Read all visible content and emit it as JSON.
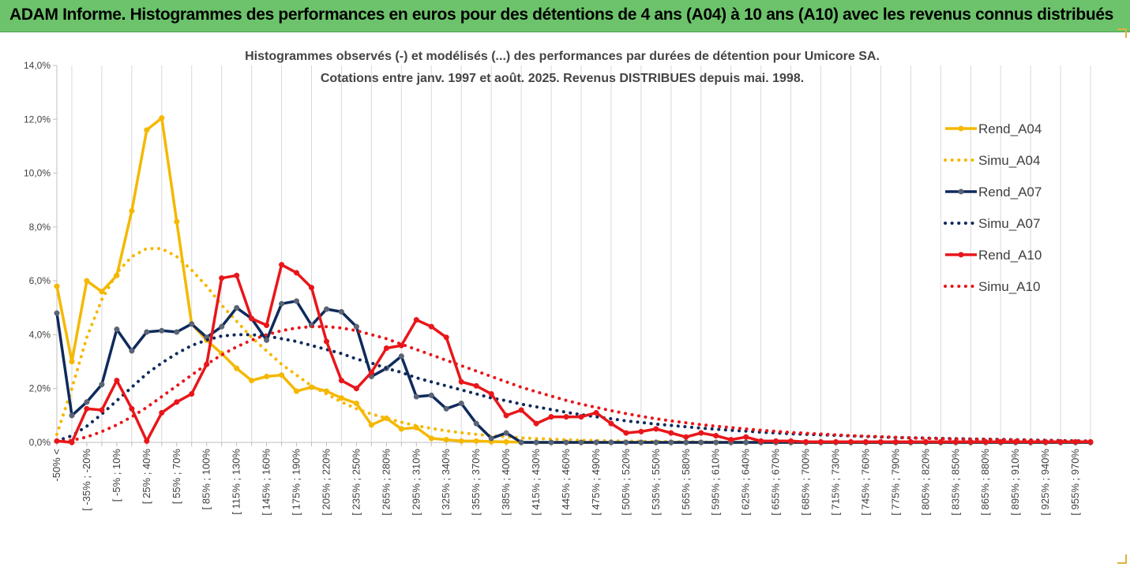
{
  "banner": {
    "title": "ADAM Informe. Histogrammes des performances en euros pour des détentions de 4 ans (A04) à 10 ans (A10) avec les revenus connus distribués"
  },
  "chart_data": {
    "type": "line",
    "title": "Histogrammes observés (-) et modélisés (...) des performances par durées de détention pour Umicore SA.",
    "subtitle": "Cotations entre janv. 1997 et août. 2025. Revenus DISTRIBUES depuis mai. 1998.",
    "xlabel": "",
    "ylabel": "",
    "ylim": [
      0,
      14
    ],
    "y_ticks": [
      "0,0%",
      "2,0%",
      "4,0%",
      "6,0%",
      "8,0%",
      "10,0%",
      "12,0%",
      "14,0%"
    ],
    "grid": "vertical",
    "legend_position": "right",
    "x_labels": [
      "-50% <",
      "[ -35% ; -20%",
      "[ -5% ; 10%",
      "[ 25% ; 40%",
      "[ 55% ; 70%",
      "[ 85% ; 100%",
      "[ 115% ; 130%",
      "[ 145% ; 160%",
      "[ 175% ; 190%",
      "[ 205% ; 220%",
      "[ 235% ; 250%",
      "[ 265% ; 280%",
      "[ 295% ; 310%",
      "[ 325% ; 340%",
      "[ 355% ; 370%",
      "[ 385% ; 400%",
      "[ 415% ; 430%",
      "[ 445% ; 460%",
      "[ 475% ; 490%",
      "[ 505% ; 520%",
      "[ 535% ; 550%",
      "[ 565% ; 580%",
      "[ 595% ; 610%",
      "[ 625% ; 640%",
      "[ 655% ; 670%",
      "[ 685% ; 700%",
      "[ 715% ; 730%",
      "[ 745% ; 760%",
      "[ 775% ; 790%",
      "[ 805% ; 820%",
      "[ 835% ; 850%",
      "[ 865% ; 880%",
      "[ 895% ; 910%",
      "[ 925% ; 940%",
      "[ 955% ; 970%"
    ],
    "series": [
      {
        "name": "Rend_A04",
        "style": "solid",
        "color": "#f5b800",
        "values": [
          5.8,
          3.0,
          6.0,
          5.6,
          6.2,
          8.6,
          11.6,
          12.05,
          8.2,
          4.4,
          3.8,
          3.3,
          2.75,
          2.3,
          2.45,
          2.5,
          1.9,
          2.05,
          1.9,
          1.65,
          1.45,
          0.65,
          0.9,
          0.5,
          0.55,
          0.15,
          0.1,
          0.05,
          0.05,
          0.03,
          0.02,
          0.01,
          0,
          0,
          0,
          0,
          0,
          0,
          0,
          0,
          0,
          0,
          0,
          0,
          0,
          0,
          0,
          0,
          0,
          0,
          0,
          0,
          0,
          0,
          0,
          0,
          0,
          0,
          0,
          0,
          0,
          0,
          0,
          0,
          0,
          0,
          0,
          0,
          0,
          0
        ]
      },
      {
        "name": "Simu_A04",
        "style": "dotted",
        "color": "#f5b800",
        "values": [
          0.3,
          2.0,
          3.9,
          5.3,
          6.3,
          6.9,
          7.2,
          7.2,
          6.9,
          6.4,
          5.8,
          5.1,
          4.5,
          3.9,
          3.4,
          2.9,
          2.5,
          2.1,
          1.8,
          1.5,
          1.25,
          1.05,
          0.9,
          0.75,
          0.62,
          0.52,
          0.43,
          0.36,
          0.3,
          0.25,
          0.21,
          0.17,
          0.14,
          0.12,
          0.1,
          0.08,
          0.07,
          0.06,
          0.05,
          0.04,
          0.03,
          0.03,
          0.02,
          0.02,
          0.01,
          0.01,
          0.01,
          0.01,
          0.01,
          0,
          0,
          0,
          0,
          0,
          0,
          0,
          0,
          0,
          0,
          0,
          0,
          0,
          0,
          0,
          0,
          0,
          0,
          0,
          0,
          0
        ]
      },
      {
        "name": "Rend_A07",
        "style": "solid",
        "color": "#0f2a5c",
        "values": [
          4.8,
          1.0,
          1.5,
          2.15,
          4.2,
          3.4,
          4.1,
          4.15,
          4.1,
          4.4,
          3.9,
          4.3,
          5.0,
          4.6,
          3.8,
          5.15,
          5.25,
          4.35,
          4.95,
          4.85,
          4.3,
          2.45,
          2.75,
          3.2,
          1.7,
          1.75,
          1.25,
          1.45,
          0.7,
          0.15,
          0.35,
          0,
          0,
          0,
          0,
          0,
          0,
          0,
          0,
          0,
          0,
          0,
          0,
          0,
          0,
          0,
          0,
          0,
          0,
          0,
          0,
          0,
          0,
          0,
          0,
          0,
          0,
          0,
          0,
          0,
          0,
          0,
          0,
          0,
          0,
          0,
          0,
          0,
          0,
          0
        ]
      },
      {
        "name": "Simu_A07",
        "style": "dotted",
        "color": "#0f2a5c",
        "values": [
          0.05,
          0.25,
          0.6,
          1.05,
          1.55,
          2.05,
          2.55,
          2.95,
          3.3,
          3.6,
          3.8,
          3.95,
          4.0,
          4.0,
          3.95,
          3.85,
          3.75,
          3.6,
          3.45,
          3.3,
          3.1,
          2.95,
          2.75,
          2.6,
          2.4,
          2.25,
          2.1,
          1.95,
          1.8,
          1.65,
          1.55,
          1.42,
          1.32,
          1.22,
          1.12,
          1.03,
          0.95,
          0.88,
          0.8,
          0.74,
          0.68,
          0.63,
          0.58,
          0.53,
          0.49,
          0.45,
          0.42,
          0.38,
          0.35,
          0.32,
          0.3,
          0.28,
          0.26,
          0.24,
          0.22,
          0.2,
          0.18,
          0.17,
          0.16,
          0.15,
          0.14,
          0.13,
          0.12,
          0.11,
          0.1,
          0.09,
          0.08,
          0.07,
          0.06,
          0.05
        ]
      },
      {
        "name": "Rend_A10",
        "style": "solid",
        "color": "#e8161a",
        "values": [
          0.05,
          0,
          1.25,
          1.2,
          2.3,
          1.25,
          0.05,
          1.1,
          1.5,
          1.8,
          2.9,
          6.1,
          6.2,
          4.6,
          4.35,
          6.6,
          6.3,
          5.75,
          3.75,
          2.3,
          2.0,
          2.6,
          3.5,
          3.6,
          4.55,
          4.3,
          3.9,
          2.25,
          2.1,
          1.8,
          1.0,
          1.2,
          0.7,
          0.95,
          0.95,
          0.95,
          1.1,
          0.7,
          0.35,
          0.4,
          0.5,
          0.35,
          0.2,
          0.35,
          0.25,
          0.1,
          0.2,
          0.05,
          0.05,
          0.05,
          0.02,
          0.02,
          0.02,
          0.02,
          0.02,
          0.02,
          0.02,
          0.02,
          0.02,
          0.02,
          0.02,
          0.02,
          0.02,
          0.02,
          0.02,
          0.02,
          0.02,
          0.02,
          0.02,
          0.02
        ]
      },
      {
        "name": "Simu_A10",
        "style": "dotted",
        "color": "#e8161a",
        "values": [
          0.02,
          0.08,
          0.2,
          0.4,
          0.65,
          0.95,
          1.3,
          1.7,
          2.1,
          2.5,
          2.9,
          3.25,
          3.55,
          3.8,
          4.0,
          4.15,
          4.25,
          4.3,
          4.3,
          4.25,
          4.15,
          4.0,
          3.85,
          3.65,
          3.45,
          3.25,
          3.05,
          2.85,
          2.65,
          2.45,
          2.25,
          2.05,
          1.88,
          1.72,
          1.56,
          1.42,
          1.3,
          1.18,
          1.07,
          0.97,
          0.88,
          0.8,
          0.73,
          0.66,
          0.6,
          0.55,
          0.5,
          0.45,
          0.41,
          0.37,
          0.34,
          0.31,
          0.28,
          0.25,
          0.23,
          0.21,
          0.19,
          0.17,
          0.15,
          0.14,
          0.13,
          0.12,
          0.11,
          0.1,
          0.09,
          0.08,
          0.07,
          0.06,
          0.05,
          0.05
        ]
      }
    ]
  }
}
